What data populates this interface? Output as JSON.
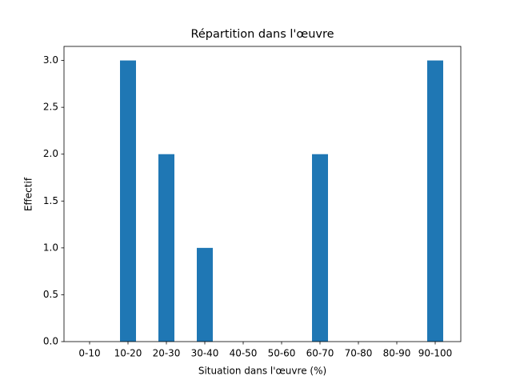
{
  "chart_data": {
    "type": "bar",
    "title": "Répartition dans l'œuvre",
    "x_label": "Situation dans l'œuvre (%)",
    "y_label": "Effectif",
    "categories": [
      "0-10",
      "10-20",
      "20-30",
      "30-40",
      "40-50",
      "50-60",
      "60-70",
      "70-80",
      "80-90",
      "90-100"
    ],
    "values": [
      0,
      3,
      2,
      1,
      0,
      0,
      2,
      0,
      0,
      3
    ],
    "color": "#1f77b4",
    "ylim": [
      0,
      3.15
    ],
    "yticks": [
      {
        "value": 0,
        "label": "0.0"
      },
      0.5,
      {
        "value": 1,
        "label": "1.0"
      },
      1.5,
      {
        "value": 2,
        "label": "2.0"
      },
      2.5,
      {
        "value": 3,
        "label": "3.0"
      }
    ],
    "grid": false
  }
}
